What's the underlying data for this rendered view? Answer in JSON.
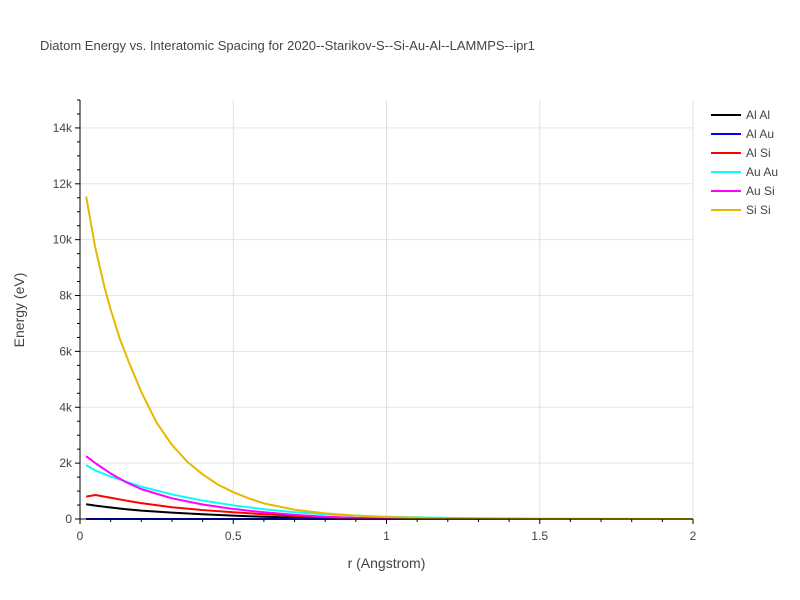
{
  "chart_data": {
    "type": "line",
    "title": "Diatom Energy vs. Interatomic Spacing for 2020--Starikov-S--Si-Au-Al--LAMMPS--ipr1",
    "xlabel": "r (Angstrom)",
    "ylabel": "Energy (eV)",
    "xlim": [
      0,
      2
    ],
    "ylim": [
      0,
      15000
    ],
    "x_ticks": [
      0,
      0.5,
      1,
      1.5,
      2
    ],
    "x_tick_labels": [
      "0",
      "0.5",
      "1",
      "1.5",
      "2"
    ],
    "y_ticks": [
      0,
      2000,
      4000,
      6000,
      8000,
      10000,
      12000,
      14000
    ],
    "y_tick_labels": [
      "0",
      "2k",
      "4k",
      "6k",
      "8k",
      "10k",
      "12k",
      "14k"
    ],
    "grid": true,
    "legend_position": "top-right",
    "series": [
      {
        "name": "Al Al",
        "color": "#000000",
        "x": [
          0.02,
          0.05,
          0.1,
          0.15,
          0.2,
          0.3,
          0.4,
          0.5,
          0.6,
          0.7,
          0.8,
          1.0,
          1.2,
          1.5,
          2.0
        ],
        "y": [
          530,
          480,
          410,
          350,
          300,
          230,
          170,
          120,
          80,
          50,
          30,
          10,
          5,
          0,
          0
        ]
      },
      {
        "name": "Al Au",
        "color": "#0000ff",
        "x": [
          0.02,
          0.5,
          1.0,
          1.5,
          2.0
        ],
        "y": [
          0,
          0,
          0,
          0,
          0
        ]
      },
      {
        "name": "Al Si",
        "color": "#ff0000",
        "x": [
          0.02,
          0.05,
          0.1,
          0.15,
          0.2,
          0.3,
          0.4,
          0.5,
          0.6,
          0.7,
          0.8,
          0.9,
          1.0,
          1.2,
          1.5,
          2.0
        ],
        "y": [
          800,
          860,
          760,
          660,
          570,
          420,
          320,
          240,
          170,
          110,
          70,
          35,
          15,
          5,
          0,
          0
        ]
      },
      {
        "name": "Au Au",
        "color": "#00ffff",
        "x": [
          0.02,
          0.05,
          0.1,
          0.15,
          0.2,
          0.3,
          0.4,
          0.5,
          0.6,
          0.7,
          0.8,
          0.9,
          1.0,
          1.2,
          1.5,
          2.0
        ],
        "y": [
          1930,
          1740,
          1520,
          1340,
          1160,
          880,
          660,
          490,
          350,
          240,
          170,
          120,
          80,
          40,
          10,
          0
        ]
      },
      {
        "name": "Au Si",
        "color": "#ff00ff",
        "x": [
          0.02,
          0.05,
          0.1,
          0.15,
          0.2,
          0.3,
          0.4,
          0.5,
          0.6,
          0.7,
          0.8,
          0.9,
          1.0,
          1.2,
          1.5,
          2.0
        ],
        "y": [
          2250,
          2000,
          1630,
          1320,
          1070,
          740,
          520,
          360,
          240,
          150,
          80,
          40,
          15,
          5,
          0,
          0
        ]
      },
      {
        "name": "Si Si",
        "color": "#e6b800",
        "x": [
          0.02,
          0.05,
          0.08,
          0.1,
          0.13,
          0.16,
          0.2,
          0.25,
          0.3,
          0.35,
          0.4,
          0.45,
          0.5,
          0.55,
          0.6,
          0.7,
          0.8,
          0.9,
          1.0,
          1.2,
          1.5,
          2.0
        ],
        "y": [
          11550,
          9700,
          8300,
          7500,
          6450,
          5600,
          4550,
          3450,
          2650,
          2050,
          1600,
          1230,
          960,
          740,
          560,
          330,
          200,
          120,
          70,
          25,
          5,
          0
        ]
      }
    ]
  }
}
